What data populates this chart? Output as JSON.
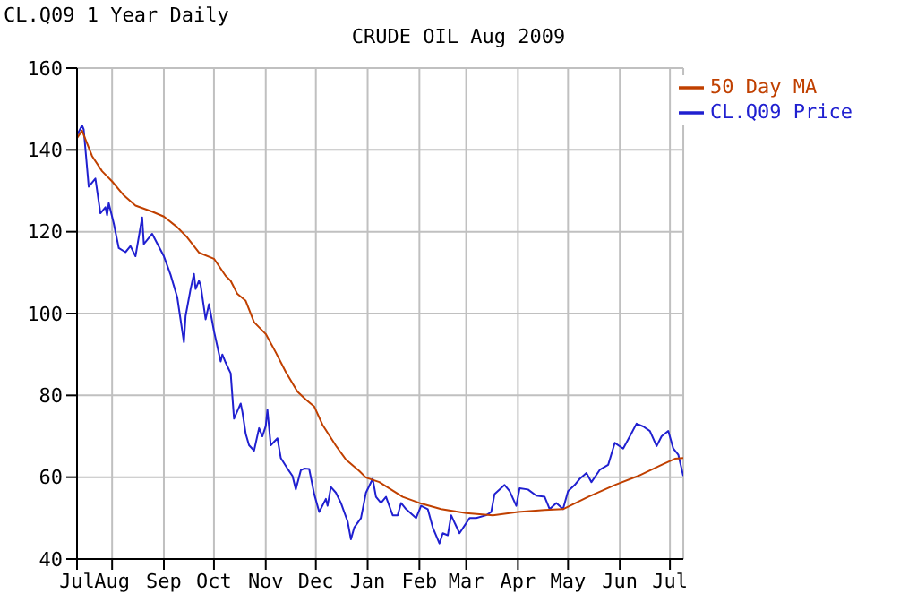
{
  "chart_data": {
    "type": "line",
    "title": "CRUDE OIL Aug 2009",
    "subtitle": "CL.Q09 1 Year Daily",
    "xlim": [
      "2008-07-11",
      "2009-07-09"
    ],
    "xticks": [
      {
        "value": "2008-07-11",
        "label": "Jul"
      },
      {
        "value": "2008-08-01",
        "label": "Aug"
      },
      {
        "value": "2008-09-01",
        "label": "Sep"
      },
      {
        "value": "2008-10-01",
        "label": "Oct"
      },
      {
        "value": "2008-11-01",
        "label": "Nov"
      },
      {
        "value": "2008-12-01",
        "label": "Dec"
      },
      {
        "value": "2009-01-01",
        "label": "Jan"
      },
      {
        "value": "2009-02-01",
        "label": "Feb"
      },
      {
        "value": "2009-03-01",
        "label": "Mar"
      },
      {
        "value": "2009-04-01",
        "label": "Apr"
      },
      {
        "value": "2009-05-01",
        "label": "May"
      },
      {
        "value": "2009-06-01",
        "label": "Jun"
      },
      {
        "value": "2009-07-01",
        "label": "Jul"
      }
    ],
    "ylim": [
      40,
      160
    ],
    "yticks": [
      40,
      60,
      80,
      100,
      120,
      140,
      160
    ],
    "grid": true,
    "legend": "top right",
    "marker": "none",
    "line_style": "solid",
    "series": [
      {
        "name": "CL.Q09 Price",
        "color": "#2020d0",
        "x": [
          "2008-07-11",
          "2008-07-14",
          "2008-07-15",
          "2008-07-18",
          "2008-07-22",
          "2008-07-25",
          "2008-07-28",
          "2008-07-29",
          "2008-07-30",
          "2008-08-02",
          "2008-08-05",
          "2008-08-09",
          "2008-08-12",
          "2008-08-15",
          "2008-08-19",
          "2008-08-20",
          "2008-08-22",
          "2008-08-25",
          "2008-09-01",
          "2008-09-05",
          "2008-09-09",
          "2008-09-13",
          "2008-09-14",
          "2008-09-17",
          "2008-09-19",
          "2008-09-20",
          "2008-09-22",
          "2008-09-23",
          "2008-09-26",
          "2008-09-28",
          "2008-10-01",
          "2008-10-05",
          "2008-10-06",
          "2008-10-08",
          "2008-10-11",
          "2008-10-13",
          "2008-10-17",
          "2008-10-18",
          "2008-10-20",
          "2008-10-22",
          "2008-10-25",
          "2008-10-28",
          "2008-10-30",
          "2008-11-01",
          "2008-11-02",
          "2008-11-04",
          "2008-11-08",
          "2008-11-10",
          "2008-11-14",
          "2008-11-17",
          "2008-11-19",
          "2008-11-22",
          "2008-11-24",
          "2008-11-27",
          "2008-11-30",
          "2008-12-03",
          "2008-12-07",
          "2008-12-08",
          "2008-12-10",
          "2008-12-13",
          "2008-12-16",
          "2008-12-20",
          "2008-12-22",
          "2008-12-24",
          "2008-12-28",
          "2008-12-31",
          "2009-01-04",
          "2009-01-06",
          "2009-01-09",
          "2009-01-12",
          "2009-01-16",
          "2009-01-19",
          "2009-01-21",
          "2009-01-24",
          "2009-01-30",
          "2009-02-02",
          "2009-02-06",
          "2009-02-09",
          "2009-02-13",
          "2009-02-15",
          "2009-02-18",
          "2009-02-20",
          "2009-02-25",
          "2009-03-03",
          "2009-03-07",
          "2009-03-13",
          "2009-03-16",
          "2009-03-18",
          "2009-03-24",
          "2009-03-27",
          "2009-03-31",
          "2009-04-02",
          "2009-04-07",
          "2009-04-12",
          "2009-04-17",
          "2009-04-20",
          "2009-04-24",
          "2009-04-28",
          "2009-05-01",
          "2009-05-05",
          "2009-05-08",
          "2009-05-12",
          "2009-05-15",
          "2009-05-20",
          "2009-05-25",
          "2009-05-29",
          "2009-06-03",
          "2009-06-07",
          "2009-06-11",
          "2009-06-15",
          "2009-06-19",
          "2009-06-23",
          "2009-06-26",
          "2009-06-30",
          "2009-07-03",
          "2009-07-06",
          "2009-07-09"
        ],
        "values": [
          143.6,
          146,
          145,
          131,
          133,
          124.5,
          126,
          124,
          127,
          122,
          116,
          115,
          116.5,
          114,
          123.5,
          117,
          118,
          119.5,
          114,
          109.5,
          104,
          93,
          99.4,
          106,
          109.7,
          106,
          108,
          107,
          98.6,
          102.3,
          95.7,
          88.3,
          90,
          88,
          85.4,
          74.3,
          78,
          76,
          70.6,
          67.8,
          66.5,
          72,
          70,
          72.5,
          76.5,
          67.8,
          69.5,
          64.7,
          62.1,
          60.3,
          57,
          61.7,
          62.1,
          62,
          55.9,
          51.5,
          54.7,
          53,
          57.6,
          56.2,
          53.7,
          49.2,
          44.8,
          47.7,
          50,
          56.2,
          59.6,
          55.2,
          53.7,
          55.2,
          50.7,
          50.7,
          53.7,
          52.2,
          50,
          53,
          52.2,
          47.7,
          43.8,
          46.3,
          45.8,
          50.7,
          46.3,
          50,
          50,
          50.7,
          51.5,
          55.9,
          58.1,
          56.6,
          53,
          57.3,
          57,
          55.5,
          55.2,
          52.2,
          53.7,
          52.2,
          56.6,
          58.1,
          59.6,
          61,
          58.8,
          61.8,
          63,
          68.4,
          67,
          70,
          73.1,
          72.4,
          71.3,
          67.6,
          70,
          71.3,
          67,
          65.5,
          60.3
        ]
      },
      {
        "name": "50 Day MA",
        "color": "#c04000",
        "x": [
          "2008-07-11",
          "2008-07-14",
          "2008-07-20",
          "2008-07-26",
          "2008-08-01",
          "2008-08-08",
          "2008-08-15",
          "2008-08-25",
          "2008-09-01",
          "2008-09-09",
          "2008-09-15",
          "2008-09-22",
          "2008-10-01",
          "2008-10-08",
          "2008-10-11",
          "2008-10-15",
          "2008-10-20",
          "2008-10-25",
          "2008-11-01",
          "2008-11-07",
          "2008-11-13",
          "2008-11-20",
          "2008-11-25",
          "2008-11-30",
          "2008-12-05",
          "2008-12-13",
          "2008-12-19",
          "2008-12-27",
          "2008-12-31",
          "2009-01-08",
          "2009-01-22",
          "2009-02-01",
          "2009-02-14",
          "2009-03-01",
          "2009-03-17",
          "2009-04-01",
          "2009-04-17",
          "2009-04-28",
          "2009-05-13",
          "2009-05-29",
          "2009-06-12",
          "2009-06-26",
          "2009-07-04",
          "2009-07-09"
        ],
        "values": [
          142.9,
          144.7,
          138.5,
          134.8,
          132.3,
          128.9,
          126.4,
          124.9,
          123.7,
          121.1,
          118.6,
          114.9,
          113.4,
          109.2,
          108,
          104.8,
          103.1,
          97.9,
          95,
          90.5,
          85.7,
          80.9,
          79,
          77.3,
          72.8,
          67.7,
          64.3,
          61.5,
          59.9,
          58.8,
          55.2,
          53.7,
          52.2,
          51.2,
          50.7,
          51.5,
          52,
          52.2,
          55.2,
          58.1,
          60.3,
          63,
          64.5,
          64.7
        ]
      }
    ]
  }
}
